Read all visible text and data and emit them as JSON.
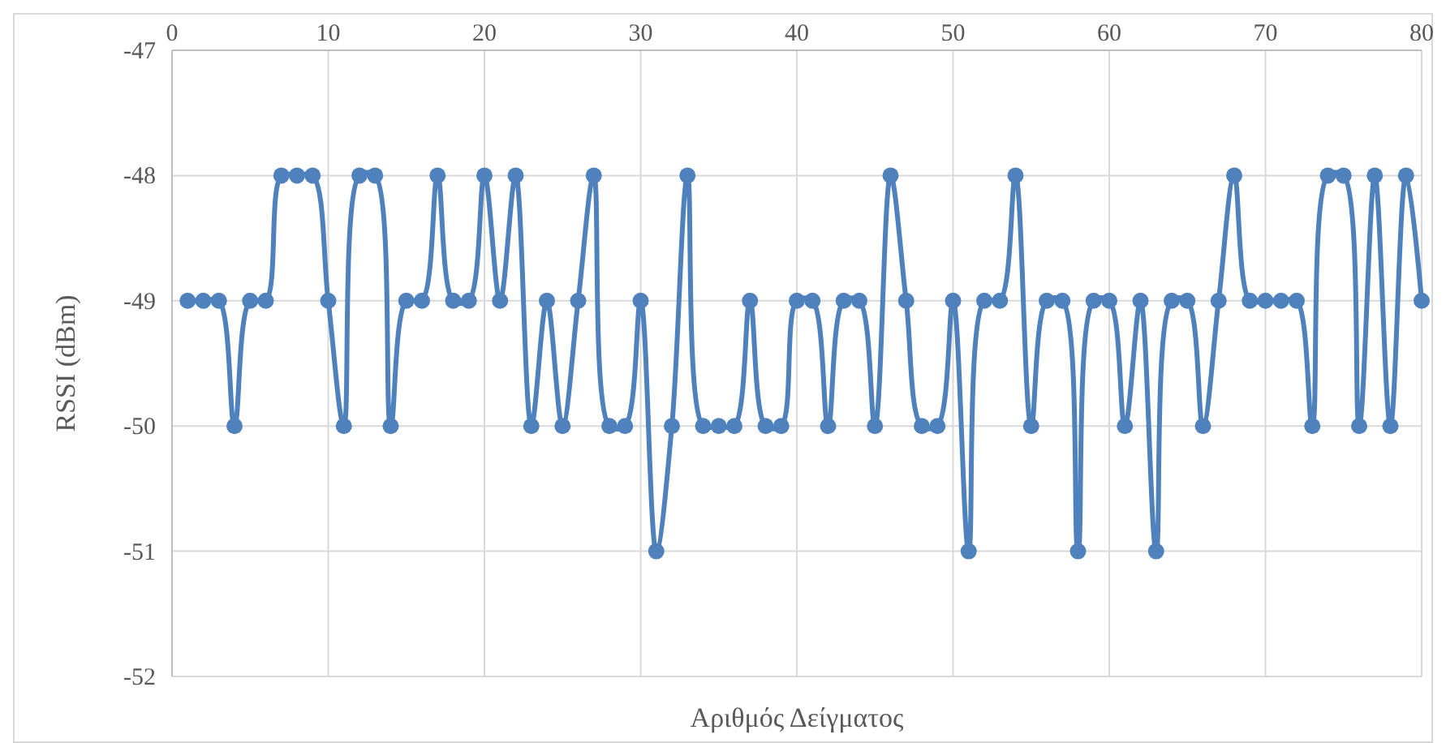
{
  "chart_data": {
    "type": "line",
    "xlabel": "Αριθμός Δείγματος",
    "ylabel": "RSSI (dBm)",
    "x": [
      1,
      2,
      3,
      4,
      5,
      6,
      7,
      8,
      9,
      10,
      11,
      12,
      13,
      14,
      15,
      16,
      17,
      18,
      19,
      20,
      21,
      22,
      23,
      24,
      25,
      26,
      27,
      28,
      29,
      30,
      31,
      32,
      33,
      34,
      35,
      36,
      37,
      38,
      39,
      40,
      41,
      42,
      43,
      44,
      45,
      46,
      47,
      48,
      49,
      50,
      51,
      52,
      53,
      54,
      55,
      56,
      57,
      58,
      59,
      60,
      61,
      62,
      63,
      64,
      65,
      66,
      67,
      68,
      69,
      70,
      71,
      72,
      73,
      74,
      75,
      76,
      77,
      78,
      79,
      80
    ],
    "series": [
      {
        "color": "#4f81bd",
        "values": [
          -49,
          -49,
          -49,
          -50,
          -49,
          -49,
          -48,
          -48,
          -48,
          -49,
          -50,
          -48,
          -48,
          -50,
          -49,
          -49,
          -48,
          -49,
          -49,
          -48,
          -49,
          -48,
          -50,
          -49,
          -50,
          -49,
          -48,
          -50,
          -50,
          -49,
          -51,
          -50,
          -48,
          -50,
          -50,
          -50,
          -49,
          -50,
          -50,
          -49,
          -49,
          -50,
          -49,
          -49,
          -50,
          -48,
          -49,
          -50,
          -50,
          -49,
          -51,
          -49,
          -49,
          -48,
          -50,
          -49,
          -49,
          -51,
          -49,
          -49,
          -50,
          -49,
          -51,
          -49,
          -49,
          -50,
          -49,
          -48,
          -49,
          -49,
          -49,
          -49,
          -50,
          -48,
          -48,
          -50,
          -48,
          -50,
          -48,
          -49
        ]
      }
    ],
    "xlim": [
      0,
      80
    ],
    "xticks": [
      0,
      10,
      20,
      30,
      40,
      50,
      60,
      70,
      80
    ],
    "ylim": [
      -52,
      -47
    ],
    "yticks": [
      -52,
      -51,
      -50,
      -49,
      -48,
      -47
    ],
    "grid": true,
    "marker": "circle",
    "line_style": "solid"
  }
}
